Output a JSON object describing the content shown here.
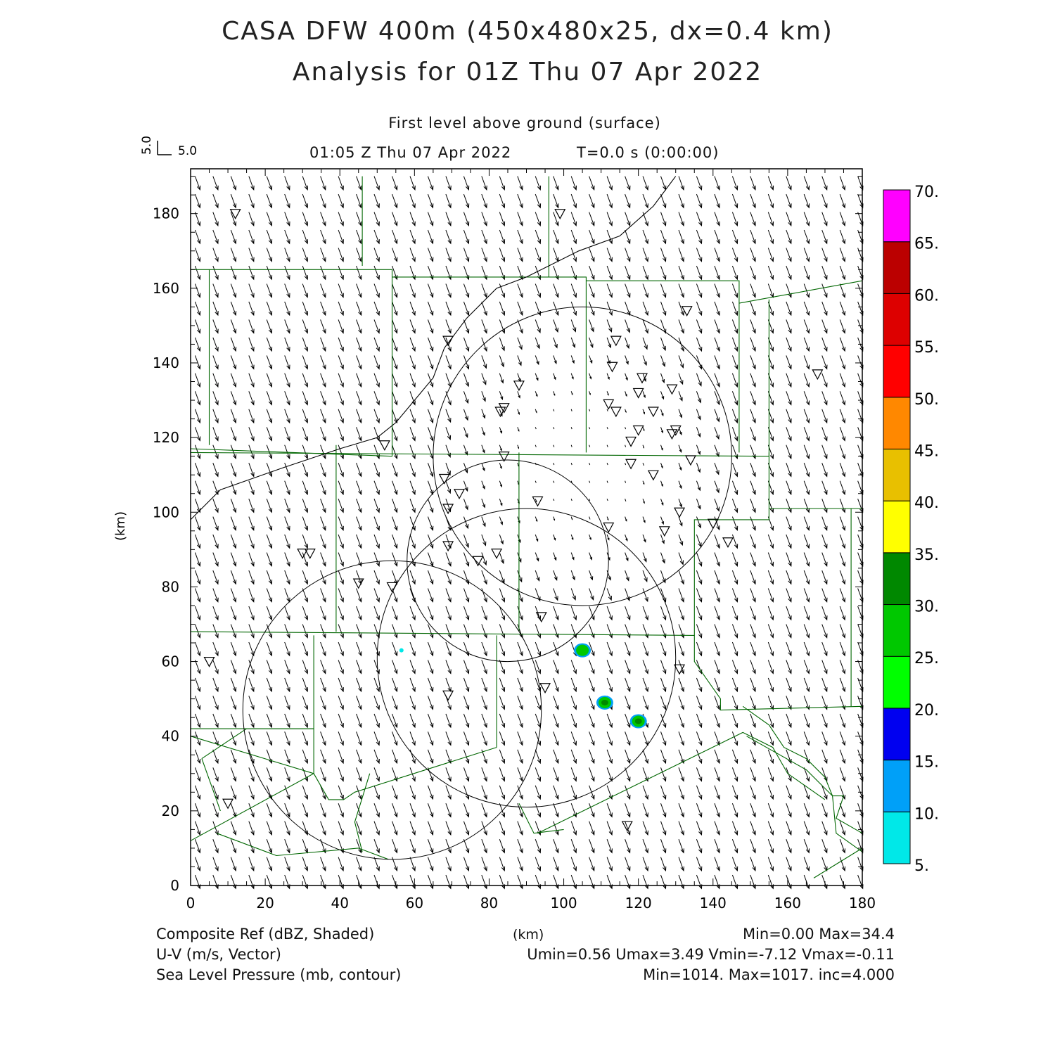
{
  "header": {
    "title_line1": "CASA DFW 400m (450x480x25, dx=0.4 km)",
    "title_line2": "Analysis for 01Z Thu 07 Apr 2022",
    "level": "First level above ground (surface)",
    "valid_time": "01:05 Z Thu 07 Apr 2022",
    "forecast_time": "T=0.0 s (0:00:00)"
  },
  "vector_key": {
    "u_label": "5.0",
    "v_label": "5.0"
  },
  "axes": {
    "x_label": "(km)",
    "y_label": "(km)",
    "x_ticks": [
      "0",
      "20",
      "40",
      "60",
      "80",
      "100",
      "120",
      "140",
      "160",
      "180"
    ],
    "y_ticks": [
      "0",
      "20",
      "40",
      "60",
      "80",
      "100",
      "120",
      "140",
      "160",
      "180"
    ],
    "x_range": [
      0,
      180
    ],
    "y_range": [
      0,
      192
    ]
  },
  "colorbar": {
    "labels": [
      "5.",
      "10.",
      "15.",
      "20.",
      "25.",
      "30.",
      "35.",
      "40.",
      "45.",
      "50.",
      "55.",
      "60.",
      "65.",
      "70."
    ],
    "colors": [
      "#00e8e8",
      "#00a0f8",
      "#0000f0",
      "#00ff00",
      "#00c800",
      "#008800",
      "#ffff00",
      "#e8c000",
      "#ff8800",
      "#ff0000",
      "#dd0000",
      "#bb0000",
      "#ff00ff"
    ]
  },
  "footer": {
    "left1": "Composite Ref (dBZ, Shaded)",
    "left2": "U-V (m/s, Vector)",
    "left3": "Sea Level Pressure (mb, contour)",
    "center1": "(km)",
    "right1": "Min=0.00 Max=34.4",
    "right2": "Umin=0.56 Umax=3.49 Vmin=-7.12 Vmax=-0.11",
    "right3": "Min=1014. Max=1017. inc=4.000"
  },
  "map_data": {
    "radar_range_rings_km": [
      {
        "cx": 105,
        "cy": 115,
        "r": 40
      },
      {
        "cx": 85,
        "cy": 87,
        "r": 27
      },
      {
        "cx": 90,
        "cy": 61,
        "r": 40
      },
      {
        "cx": 54,
        "cy": 47,
        "r": 40
      }
    ],
    "reflectivity_cells_km": [
      {
        "x": 105,
        "y": 63,
        "dbz": 25
      },
      {
        "x": 111,
        "y": 49,
        "dbz": 30
      },
      {
        "x": 120,
        "y": 44,
        "dbz": 30
      },
      {
        "x": 56.5,
        "y": 63,
        "dbz": 5
      }
    ],
    "stations_km": [
      [
        12,
        180
      ],
      [
        99,
        180
      ],
      [
        133,
        154
      ],
      [
        69,
        146
      ],
      [
        114,
        146
      ],
      [
        88,
        134
      ],
      [
        113,
        139
      ],
      [
        121,
        136
      ],
      [
        120,
        132
      ],
      [
        129,
        133
      ],
      [
        83,
        127
      ],
      [
        84,
        128
      ],
      [
        112,
        129
      ],
      [
        114,
        127
      ],
      [
        124,
        127
      ],
      [
        120,
        122
      ],
      [
        118,
        119
      ],
      [
        129,
        121
      ],
      [
        130,
        122
      ],
      [
        52,
        118
      ],
      [
        84,
        115
      ],
      [
        134,
        114
      ],
      [
        118,
        113
      ],
      [
        124,
        110
      ],
      [
        68,
        109
      ],
      [
        72,
        105
      ],
      [
        69,
        101
      ],
      [
        93,
        103
      ],
      [
        131,
        100
      ],
      [
        112,
        96
      ],
      [
        140,
        97
      ],
      [
        127,
        95
      ],
      [
        144,
        92
      ],
      [
        69,
        91
      ],
      [
        82,
        89
      ],
      [
        77,
        87
      ],
      [
        30,
        89
      ],
      [
        32,
        89
      ],
      [
        45,
        81
      ],
      [
        54,
        80
      ],
      [
        94,
        72
      ],
      [
        5,
        60
      ],
      [
        131,
        58
      ],
      [
        95,
        53
      ],
      [
        69,
        51
      ],
      [
        10,
        22
      ],
      [
        117,
        16
      ],
      [
        168,
        137
      ]
    ],
    "sea_level_pressure_contour_mb": 1016
  }
}
